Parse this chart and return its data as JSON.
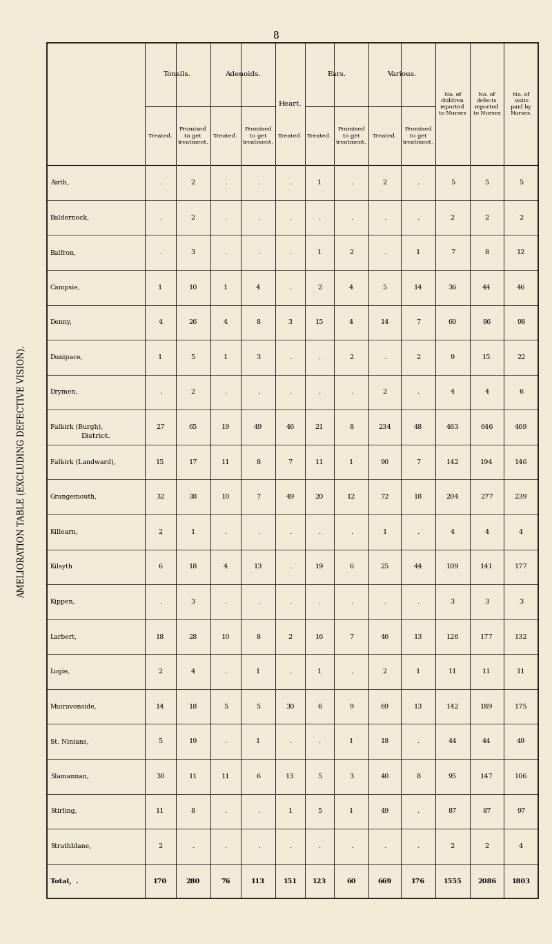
{
  "title": "AMELIORATION TABLE (EXCLUDING DEFECTIVE VISION).",
  "page_number": "8",
  "bg_color": "#f0ead6",
  "districts": [
    "Airth,",
    "Baldernock,",
    "Balfron,",
    "Campsie,",
    "Denny,",
    "Dunipace,",
    "Drymen,",
    "Falkirk (Burgh),",
    "Falkirk (Landward),",
    "Grangemouth,",
    "Killearn,",
    "Kilsyth",
    "Kippen,",
    "Larbert,",
    "Logie,",
    "Muiravonside,",
    "St. Ninians,",
    "Slamannan,",
    "Stirling,",
    "Strathblane,",
    "Total,  ."
  ],
  "tonsils_treated": [
    ".",
    ".",
    ".",
    "1",
    "4",
    "1",
    ".",
    "27",
    "15",
    "32",
    "2",
    "6",
    ".",
    "18",
    "2",
    "14",
    "5",
    "30",
    "11",
    "2",
    "170"
  ],
  "tonsils_promised": [
    "2",
    "2",
    "3",
    "10",
    "26",
    "5",
    "2",
    "65",
    "17",
    "38",
    "1",
    "18",
    "3",
    "28",
    "4",
    "18",
    "19",
    "11",
    "8",
    ".",
    "280"
  ],
  "adenoids_treated": [
    ".",
    ".",
    ".",
    "1",
    "4",
    "1",
    ".",
    "19",
    "11",
    "10",
    ".",
    "4",
    ".",
    "10",
    ".",
    "5",
    ".",
    "11",
    ".",
    ".",
    "76"
  ],
  "adenoids_promised": [
    ".",
    ".",
    ".",
    "4",
    "8",
    "3",
    ".",
    "49",
    "8",
    "7",
    ".",
    "13",
    ".",
    "8",
    "1",
    "5",
    "1",
    "6",
    ".",
    ".",
    "113"
  ],
  "heart_treated": [
    ".",
    ".",
    ".",
    ".",
    "3",
    ".",
    ".",
    "46",
    "7",
    "49",
    ".",
    ".",
    ".",
    "2",
    ".",
    "30",
    ".",
    "13",
    "1",
    ".",
    "151"
  ],
  "ears_treated": [
    "1",
    ".",
    "1",
    "2",
    "15",
    ".",
    ".",
    "21",
    "11",
    "20",
    ".",
    "19",
    ".",
    "16",
    "1",
    "6",
    ".",
    "5",
    "5",
    ".",
    "123"
  ],
  "ears_promised": [
    ".",
    ".",
    "2",
    "4",
    "4",
    "2",
    ".",
    "8",
    "1",
    "12",
    ".",
    "6",
    ".",
    "7",
    ".",
    "9",
    "1",
    "3",
    "1",
    ".",
    "60"
  ],
  "various_treated": [
    "2",
    ".",
    ".",
    "5",
    "14",
    ".",
    "2",
    "234",
    "90",
    "72",
    "1",
    "25",
    ".",
    "46",
    "2",
    "69",
    "18",
    "40",
    "49",
    ".",
    "669"
  ],
  "various_promised": [
    ".",
    ".",
    "1",
    "14",
    "7",
    "2",
    ".",
    "48",
    "7",
    "18",
    ".",
    "44",
    ".",
    "13",
    "1",
    "13",
    ".",
    "8",
    ".",
    ".",
    "176"
  ],
  "children_reported": [
    "5",
    "2",
    "7",
    "36",
    "60",
    "9",
    "4",
    "463",
    "142",
    "204",
    "4",
    "109",
    "3",
    "126",
    "11",
    "142",
    "44",
    "95",
    "87",
    "2",
    "1555"
  ],
  "defects_reported": [
    "5",
    "2",
    "8",
    "44",
    "86",
    "15",
    "4",
    "646",
    "194",
    "277",
    "4",
    "141",
    "3",
    "177",
    "11",
    "189",
    "44",
    "147",
    "87",
    "2",
    "2086"
  ],
  "visits_paid": [
    "5",
    "2",
    "12",
    "46",
    "98",
    "22",
    "6",
    "469",
    "146",
    "239",
    "4",
    "177",
    "3",
    "132",
    "11",
    "175",
    "49",
    "106",
    "97",
    "4",
    "1803"
  ]
}
